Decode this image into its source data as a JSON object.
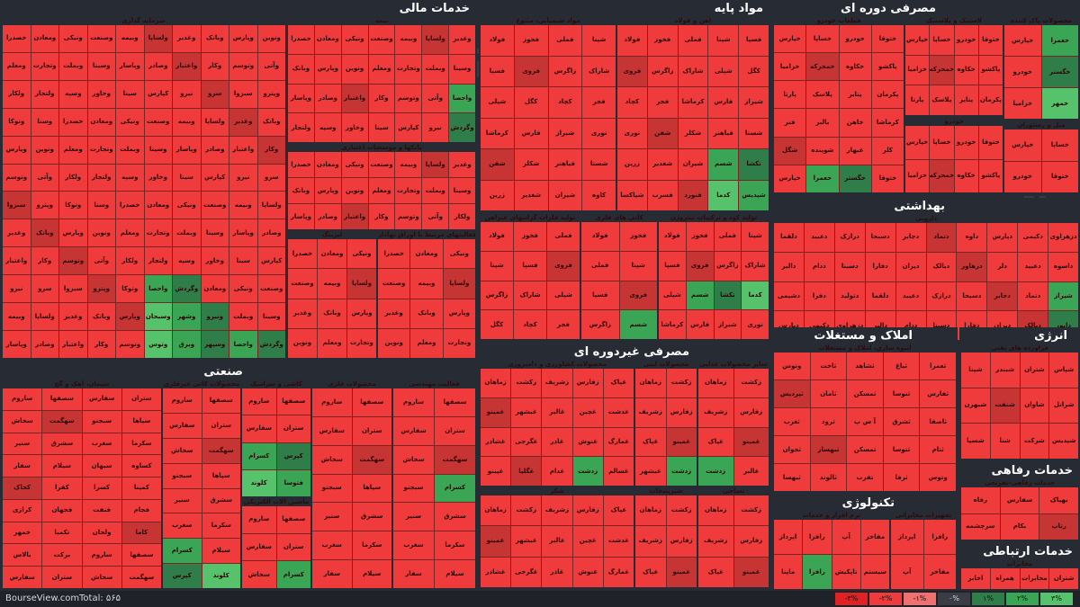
{
  "sectors": {
    "financial": {
      "title": "خدمات مالی",
      "subtitles": [
        "سرمایه گذاری",
        "بیمه",
        "بانکها و موسسات اعتباری",
        "لیزینگ",
        "فعالیتهای مرتبط با اوراق بهادار"
      ]
    },
    "basic_materials": {
      "title": "مواد پایه",
      "subtitles": [
        "مواد شیمیایی، متنوع",
        "آهن و فولاد",
        "تولید فلزات گرانبهای غیرآهن",
        "کانی های فلزی",
        "تولید کود و ترکیبات نیتروژن"
      ]
    },
    "consumer_cyclical": {
      "title": "مصرفی دوره ای",
      "subtitles": [
        "قطعات خودرو",
        "لاستیک و پلاستیک",
        "خودرو",
        "محصولات پاک کننده",
        "مبل و رستوران"
      ]
    },
    "health": {
      "title": "بهداشتی",
      "subtitles": [
        "دارویی"
      ]
    },
    "industrial": {
      "title": "صنعتی",
      "subtitles": [
        "سیمان، آهک و گچ",
        "محصولات کانی غیرفلزی",
        "کاشی و سرامیک",
        "محصولات فلزی",
        "فعالیت مهندسی",
        "ماشین آلات الکتریکی"
      ]
    },
    "consumer_noncyclical": {
      "title": "مصرفی غیردوره ای",
      "subtitles": [
        "محصولات کشاورزی و دامپروری",
        "محصولات لبنی",
        "محصولات غذایی",
        "سایر محصولات غذایی",
        "نساجی",
        "شکر",
        "شیرینیجات"
      ]
    },
    "real_estate": {
      "title": "املاک و مستغلات",
      "subtitles": [
        "انبوه سازی، املاک و مستغلات"
      ]
    },
    "energy": {
      "title": "انرژی",
      "subtitles": [
        "فراورده های نفتی"
      ]
    },
    "welfare": {
      "title": "خدمات رفاهی",
      "subtitles": [
        "خدمات رفاهی-تفریحی"
      ]
    },
    "technology": {
      "title": "تکنولوژی",
      "subtitles": [
        "نرم افزار و خدمات",
        "تجهیزات مخابراتی"
      ]
    },
    "communication": {
      "title": "خدمات ارتباطی",
      "subtitles": [
        "مخابرات"
      ]
    }
  },
  "tiles": {
    "financial": [
      "خصدرا",
      "ومعادن",
      "ونیکی",
      "وصنعت",
      "وبیمه",
      "ولساپا",
      "وغدیر",
      "وبانک",
      "وپارس",
      "ونوین",
      "ومعلم",
      "وتجارت",
      "وبملت",
      "وسینا",
      "وپاسار",
      "وصادر",
      "واعتبار",
      "وکار",
      "وتوسم",
      "وآتی",
      "ولکار",
      "ولتجار",
      "وسپه",
      "وخاور",
      "سینا",
      "کپارس",
      "نیرو",
      "سرو",
      "سبزوا",
      "وپترو",
      "وتوکا",
      "وسنا"
    ],
    "financial_green": [
      "واحصا",
      "وگردش",
      "وسبحان",
      "وشهر",
      "ونیرو",
      "وتوس",
      "وبرق",
      "وسپهر"
    ],
    "basic": [
      "فولاد",
      "فخوز",
      "فملی",
      "شپنا",
      "فسپا",
      "فروی",
      "زاگرس",
      "شاراک",
      "شپلی",
      "کگل",
      "کچاد",
      "فجر",
      "کرماشا",
      "فارس",
      "شیراز",
      "نوری",
      "شفن",
      "شکلر",
      "فباهنر",
      "شستا",
      "زرین",
      "شغدیر",
      "شیران",
      "کاوه",
      "خاور",
      "شپاکسا",
      "فسرب",
      "فنورد"
    ],
    "basic_green": [
      "شسم",
      "تکشا",
      "کدما",
      "شپدیس",
      "زقال",
      "کتکارو"
    ],
    "cyclical": [
      "خپارس",
      "خساپا",
      "خودرو",
      "ختوقا",
      "خزامیا",
      "خمحرکه",
      "خکاوه",
      "پاکشو",
      "پارتا",
      "پلاسک",
      "پتایر",
      "پکرمان",
      "فنر",
      "بالبر",
      "خاهن",
      "کرماشا",
      "شگل",
      "شوینده",
      "غبهار",
      "کلر"
    ],
    "cyclical_green": [
      "خعمرا",
      "خگستر",
      "خمهر"
    ],
    "health": [
      "دلقما",
      "دعبید",
      "درازک",
      "دسبحا",
      "دجابر",
      "دتماد",
      "داوه",
      "دپارس",
      "دکیمی",
      "دزهراوی",
      "دالبر",
      "ددام",
      "دسینا",
      "دفارا",
      "دیران",
      "دبالک",
      "درهاور",
      "دلر",
      "دعبید",
      "داسوه",
      "دشیمی",
      "دفرا",
      "دتولید"
    ],
    "health_green": [
      "شیراز",
      "دابور"
    ],
    "industrial": [
      "ساروم",
      "سصفها",
      "سفارس",
      "ستران",
      "سخاش",
      "سهگمت",
      "سبجنو",
      "سپاها",
      "سنیر",
      "سشرق",
      "سغرب",
      "سکرما",
      "سفار",
      "سیلام",
      "سبهان",
      "کساوه",
      "کخاک",
      "کفرا",
      "کسرا",
      "کمینا",
      "کرازی",
      "فجهان",
      "فنفت",
      "فجام",
      "خمهر",
      "تکمبا",
      "ولحان",
      "کاما",
      "بالاس",
      "برکت"
    ],
    "industrial_green": [
      "کسرام",
      "کپرس",
      "کلوند",
      "فتوسا",
      "بترانس"
    ],
    "noncyclical": [
      "زماهان",
      "زکشت",
      "زشریف",
      "زفارس",
      "غپاک",
      "غمینو",
      "غبشهر",
      "غالبر",
      "غچین",
      "غدشت",
      "غشاذر",
      "غگرجی",
      "غاذر",
      "غنوش",
      "غمارگ",
      "غپینو",
      "غگلپا",
      "غدام",
      "زمگسا",
      "غسالم",
      "شیراز",
      "قشهد",
      "قپیرا",
      "قنیشا",
      "قثابت",
      "قمرو",
      "قلرست",
      "قزوین",
      "قهکمت",
      "قاروم",
      "قجام",
      "نساجی",
      "نطرین",
      "نپاکشو"
    ],
    "noncyclical_green": [
      "زدشت",
      "غبهنوش",
      "غگیلا",
      "ذزماهان"
    ],
    "realestate": [
      "وتوس",
      "ثاخت",
      "ثشاهد",
      "ثباغ",
      "ثعمرا",
      "ثپردیس",
      "ثامان",
      "ثمسکن",
      "ثنوسا",
      "ثفارس",
      "ثغرب",
      "ثرود",
      "آ س پ",
      "ثشرق",
      "ثاصفا",
      "ثجوان",
      "ثبهساز",
      "ثمسکن",
      "ثتوسا",
      "ثنام",
      "ثبهسا",
      "ثالوند",
      "تفرب",
      "ثرفا"
    ],
    "energy": [
      "شپنا",
      "شبندر",
      "شتران",
      "شپاس",
      "شبهرن",
      "شنفت",
      "شاوان",
      "شرانل",
      "شسپا",
      "شنا",
      "شرکت",
      "شپدیس"
    ],
    "welfare": [
      "رفاه",
      "سفارس",
      "بهپاک",
      "سرچشمه",
      "بکام",
      "رتاپ"
    ],
    "technology": [
      "اپرداز",
      "رافزا",
      "آپ",
      "مفاخر",
      "ماپنا",
      "پرتو",
      "تاپکیش",
      "سیستم",
      "فناوران",
      "وتکا",
      "رانفور"
    ],
    "technology_green": [
      "رافزا"
    ],
    "communication": [
      "اخابر",
      "همراه",
      "مخابرات",
      "شتران"
    ]
  },
  "footer": {
    "brand": "BourseView.com",
    "total_label": "Total:",
    "total_value": "۵۶۵",
    "legend": [
      "-۳%",
      "-۲%",
      "-۱%",
      "۰%",
      "۱%",
      "۲%",
      "۳%"
    ]
  },
  "colors": {
    "neg3": "#e02222",
    "neg2": "#ef3b3b",
    "neg1": "#f06060",
    "zero": "#3a3d45",
    "pos1": "#2f7d48",
    "pos2": "#3aa655",
    "pos3": "#56c26b"
  }
}
